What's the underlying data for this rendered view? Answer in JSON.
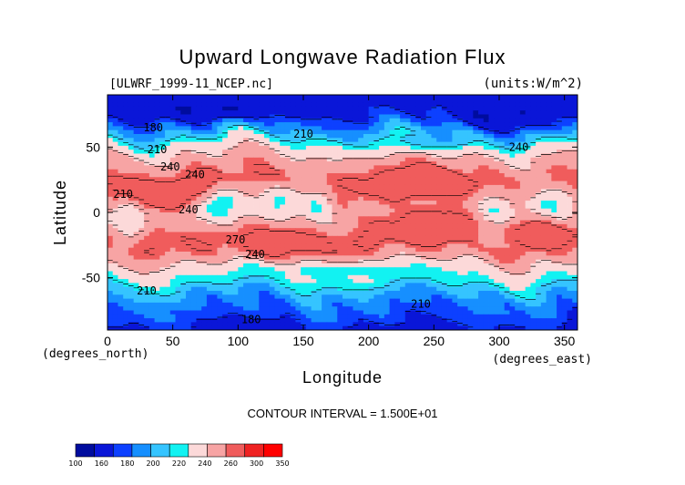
{
  "chart_data": {
    "type": "heatmap",
    "title": "Upward Longwave Radiation Flux",
    "dataset_label": "[ULWRF_1999-11_NCEP.nc]",
    "units_label": "(units:W/m^2)",
    "xlabel": "Longitude",
    "ylabel": "Latitude",
    "x_unit_label": "(degrees_east)",
    "y_unit_label": "(degrees_north)",
    "xlim": [
      0,
      360
    ],
    "ylim": [
      -90,
      90
    ],
    "x_ticks": [
      0,
      50,
      100,
      150,
      200,
      250,
      300,
      350
    ],
    "y_ticks": [
      -50,
      0,
      50
    ],
    "contour_interval_text": "CONTOUR INTERVAL = 1.500E+01",
    "contour_labels": [
      {
        "text": "180",
        "lon": 35,
        "lat": 65
      },
      {
        "text": "210",
        "lon": 38,
        "lat": 48
      },
      {
        "text": "240",
        "lon": 48,
        "lat": 35
      },
      {
        "text": "240",
        "lon": 67,
        "lat": 29
      },
      {
        "text": "210",
        "lon": 12,
        "lat": 14
      },
      {
        "text": "240",
        "lon": 62,
        "lat": 2
      },
      {
        "text": "270",
        "lon": 98,
        "lat": -21
      },
      {
        "text": "240",
        "lon": 113,
        "lat": -32
      },
      {
        "text": "210",
        "lon": 30,
        "lat": -60
      },
      {
        "text": "180",
        "lon": 110,
        "lat": -82
      },
      {
        "text": "210",
        "lon": 240,
        "lat": -70
      },
      {
        "text": "210",
        "lon": 150,
        "lat": 60
      },
      {
        "text": "240",
        "lon": 315,
        "lat": 50
      }
    ],
    "colorbar": {
      "levels": [
        100,
        160,
        180,
        200,
        220,
        240,
        260,
        300,
        350
      ],
      "colors": [
        "#000c9e",
        "#0a16d8",
        "#0d40ff",
        "#168fff",
        "#35c4ff",
        "#12f2f2",
        "#fcd9d9",
        "#f7a4a4",
        "#f05c5c",
        "#ef2222",
        "#ff0000"
      ]
    },
    "bands": [
      {
        "lat": 90,
        "value": 165
      },
      {
        "lat": 80,
        "value": 175
      },
      {
        "lat": 70,
        "value": 188
      },
      {
        "lat": 60,
        "value": 205
      },
      {
        "lat": 52,
        "value": 225
      },
      {
        "lat": 45,
        "value": 240
      },
      {
        "lat": 35,
        "value": 255
      },
      {
        "lat": 25,
        "value": 272
      },
      {
        "lat": 15,
        "value": 268
      },
      {
        "lat": 5,
        "value": 250
      },
      {
        "lat": 0,
        "value": 245
      },
      {
        "lat": -5,
        "value": 252
      },
      {
        "lat": -15,
        "value": 270
      },
      {
        "lat": -25,
        "value": 268
      },
      {
        "lat": -35,
        "value": 248
      },
      {
        "lat": -42,
        "value": 232
      },
      {
        "lat": -50,
        "value": 218
      },
      {
        "lat": -58,
        "value": 205
      },
      {
        "lat": -66,
        "value": 195
      },
      {
        "lat": -75,
        "value": 190
      },
      {
        "lat": -82,
        "value": 182
      },
      {
        "lat": -90,
        "value": 176
      }
    ],
    "features": [
      {
        "lon": 20,
        "lat": 12,
        "value": 305,
        "rlon": 18,
        "rlat": 8
      },
      {
        "lon": 72,
        "lat": 18,
        "value": 300,
        "rlon": 12,
        "rlat": 8
      },
      {
        "lon": 15,
        "lat": -5,
        "value": 215,
        "rlon": 10,
        "rlat": 12
      },
      {
        "lon": 88,
        "lat": 5,
        "value": 210,
        "rlon": 14,
        "rlat": 12
      },
      {
        "lon": 132,
        "lat": 8,
        "value": 215,
        "rlon": 12,
        "rlat": 10
      },
      {
        "lon": 160,
        "lat": 5,
        "value": 220,
        "rlon": 10,
        "rlat": 10
      },
      {
        "lon": 295,
        "lat": -5,
        "value": 205,
        "rlon": 12,
        "rlat": 14
      },
      {
        "lon": 340,
        "lat": 5,
        "value": 215,
        "rlon": 15,
        "rlat": 12
      },
      {
        "lon": 235,
        "lat": 22,
        "value": 290,
        "rlon": 25,
        "rlat": 8
      },
      {
        "lon": 250,
        "lat": -10,
        "value": 285,
        "rlon": 30,
        "rlat": 10
      },
      {
        "lon": 125,
        "lat": -25,
        "value": 280,
        "rlon": 25,
        "rlat": 8
      },
      {
        "lon": 330,
        "lat": -15,
        "value": 285,
        "rlon": 20,
        "rlat": 8
      },
      {
        "lon": 180,
        "lat": -45,
        "value": 215,
        "rlon": 60,
        "rlat": 5
      },
      {
        "lon": 250,
        "lat": 55,
        "value": 200,
        "rlon": 30,
        "rlat": 6
      },
      {
        "lon": 80,
        "lat": 80,
        "value": 160,
        "rlon": 40,
        "rlat": 6
      },
      {
        "lon": 300,
        "lat": 75,
        "value": 160,
        "rlon": 30,
        "rlat": 8
      }
    ]
  }
}
